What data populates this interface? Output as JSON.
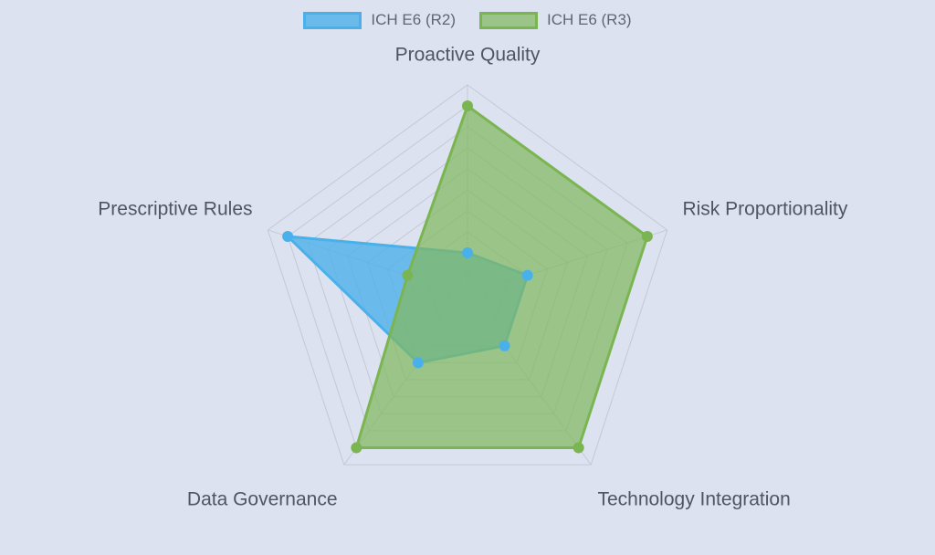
{
  "chart_data": {
    "type": "radar",
    "axes": [
      "Proactive Quality",
      "Risk Proportionality",
      "Technology Integration",
      "Data Governance",
      "Prescriptive Rules"
    ],
    "series": [
      {
        "name": "ICH E6 (R2)",
        "values": [
          2,
          3,
          3,
          4,
          9
        ],
        "color": "#4ab0ea",
        "fill": "rgba(74,176,234,0.78)"
      },
      {
        "name": "ICH E6 (R3)",
        "values": [
          9,
          9,
          9,
          9,
          3
        ],
        "color": "#7bb552",
        "fill": "rgba(130,185,95,0.72)"
      }
    ],
    "scale": {
      "min": 0,
      "max": 10,
      "grid_levels": 10
    },
    "grid_color": "#c3c9d5",
    "legend_position": "top-center"
  }
}
